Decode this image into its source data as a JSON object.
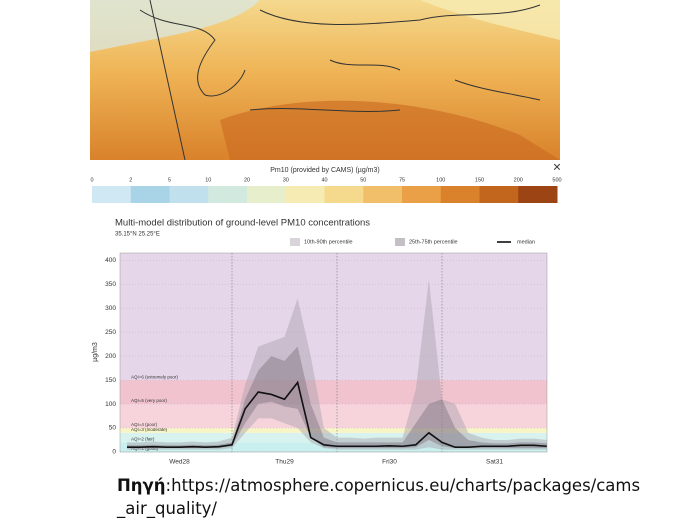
{
  "map": {
    "close": "×"
  },
  "colorbar": {
    "title": "Pm10 (provided by CAMS) (µg/m3)",
    "ticks": [
      0,
      2,
      5,
      10,
      20,
      30,
      40,
      50,
      75,
      100,
      150,
      200,
      500
    ],
    "colors": [
      "#cfe8f3",
      "#a9d4e8",
      "#bfe0ec",
      "#d2e9e0",
      "#e6eecb",
      "#f6ebb3",
      "#f5d98d",
      "#f1bf6a",
      "#e9a046",
      "#d9822b",
      "#c2651d",
      "#9c4414"
    ]
  },
  "chart_data": {
    "type": "band-line",
    "title": "Multi-model distribution of ground-level PM10 concentrations",
    "subtitle": "35.15°N 25.25°E",
    "y_label": "µg/m3",
    "categories": [
      null,
      null,
      null,
      null,
      "Wed28",
      null,
      null,
      null,
      null,
      null,
      null,
      null,
      "Thu29",
      null,
      null,
      null,
      null,
      null,
      null,
      null,
      "Fri30",
      null,
      null,
      null,
      null,
      null,
      null,
      null,
      "Sat31",
      null,
      null,
      null,
      null
    ],
    "ylim": [
      0,
      415
    ],
    "yticks": [
      0,
      50,
      100,
      150,
      200,
      250,
      300,
      350,
      400
    ],
    "aqi_bands": [
      {
        "label": "AQI=1 (good)",
        "from": 0,
        "to": 20,
        "color": "#c9f0ee"
      },
      {
        "label": "AQI=2 (fair)",
        "from": 20,
        "to": 40,
        "color": "#d8f2ef"
      },
      {
        "label": "AQI=3 (moderate)",
        "from": 40,
        "to": 50,
        "color": "#f7f4c6"
      },
      {
        "label": "AQI=4 (poor)",
        "from": 50,
        "to": 100,
        "color": "#f7d4dc"
      },
      {
        "label": "AQI=5 (very poor)",
        "from": 100,
        "to": 150,
        "color": "#f0c3cf"
      },
      {
        "label": "AQI=6 (extremely poor)",
        "from": 150,
        "to": 415,
        "color": "#e6d6ea"
      }
    ],
    "series": [
      {
        "name": "10th-90th percentile",
        "color": "#a9a0ab",
        "lower": [
          5,
          5,
          5,
          5,
          5,
          5,
          5,
          5,
          8,
          40,
          70,
          70,
          60,
          50,
          20,
          8,
          5,
          5,
          5,
          5,
          5,
          5,
          5,
          10,
          5,
          5,
          5,
          5,
          5,
          5,
          5,
          5,
          5
        ],
        "upper": [
          20,
          20,
          22,
          20,
          20,
          22,
          20,
          22,
          30,
          140,
          220,
          230,
          240,
          320,
          200,
          50,
          30,
          30,
          28,
          30,
          30,
          30,
          130,
          360,
          110,
          100,
          40,
          30,
          25,
          25,
          28,
          28,
          25
        ]
      },
      {
        "name": "25th-75th percentile",
        "color": "#7d707f",
        "lower": [
          8,
          8,
          8,
          8,
          8,
          8,
          8,
          8,
          12,
          60,
          100,
          105,
          95,
          90,
          30,
          10,
          8,
          8,
          8,
          8,
          8,
          8,
          10,
          25,
          12,
          8,
          8,
          8,
          8,
          8,
          8,
          8,
          8
        ],
        "upper": [
          14,
          14,
          15,
          14,
          14,
          15,
          14,
          15,
          20,
          110,
          170,
          200,
          190,
          220,
          100,
          30,
          20,
          20,
          20,
          20,
          20,
          20,
          60,
          100,
          110,
          50,
          25,
          20,
          18,
          18,
          20,
          20,
          18
        ]
      },
      {
        "name": "median",
        "color": "#111111",
        "values": [
          10,
          10,
          11,
          10,
          10,
          11,
          10,
          11,
          15,
          90,
          125,
          120,
          110,
          145,
          30,
          15,
          12,
          12,
          12,
          12,
          13,
          12,
          15,
          40,
          20,
          10,
          10,
          12,
          12,
          12,
          14,
          14,
          12
        ]
      }
    ]
  },
  "caption": {
    "label": "Πηγή",
    "text": ":https://atmosphere.copernicus.eu/charts/packages/cams_air_quality/"
  }
}
